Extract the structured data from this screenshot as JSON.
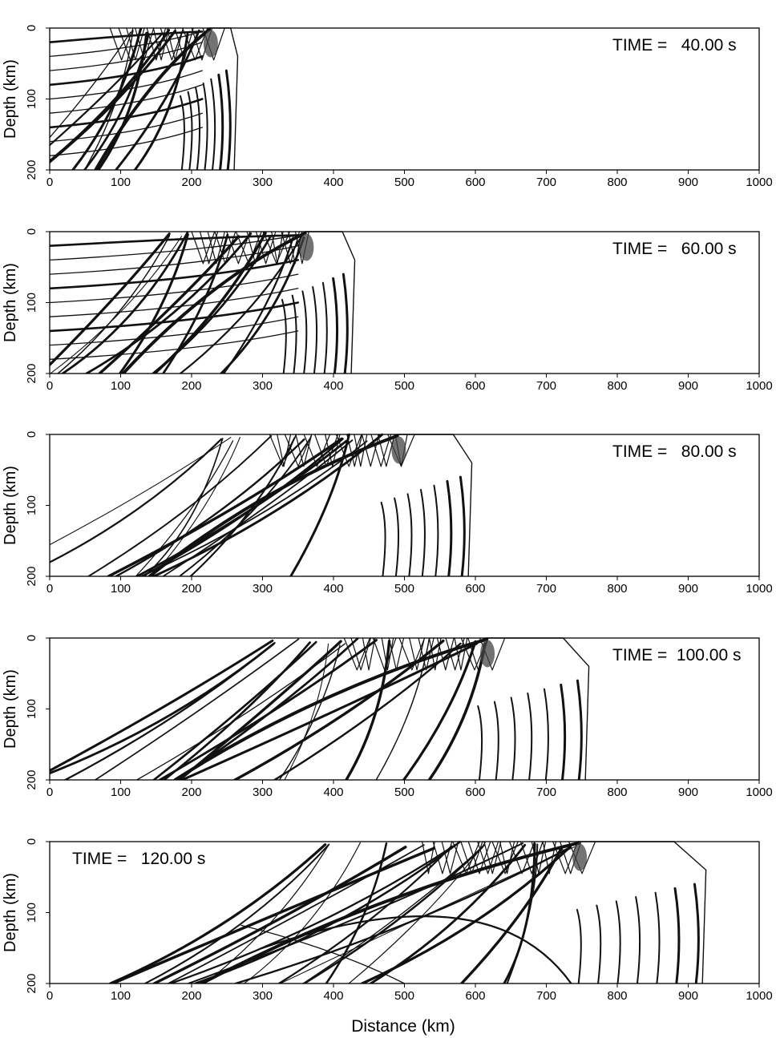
{
  "figure": {
    "xlabel": "Distance (km)",
    "ylabel": "Depth (km)"
  },
  "chart_data": [
    {
      "type": "wavefield-snapshot",
      "time_label": "TIME =   40.00 s",
      "time_s": 40.0,
      "label_pos": "top-right",
      "xlabel": "",
      "ylabel": "Depth (km)",
      "xlim": [
        0,
        1000
      ],
      "ylim": [
        200,
        0
      ],
      "xticks": [
        "0",
        "100",
        "200",
        "300",
        "400",
        "500",
        "600",
        "700",
        "800",
        "900",
        "1000"
      ],
      "yticks": [
        "0",
        "100",
        "200"
      ],
      "source_x_km": 225,
      "front_x_km": 265
    },
    {
      "type": "wavefield-snapshot",
      "time_label": "TIME =   60.00 s",
      "time_s": 60.0,
      "label_pos": "top-right",
      "xlabel": "",
      "ylabel": "Depth (km)",
      "xlim": [
        0,
        1000
      ],
      "ylim": [
        200,
        0
      ],
      "xticks": [
        "0",
        "100",
        "200",
        "300",
        "400",
        "500",
        "600",
        "700",
        "800",
        "900",
        "1000"
      ],
      "yticks": [
        "0",
        "100",
        "200"
      ],
      "source_x_km": 360,
      "front_x_km": 430
    },
    {
      "type": "wavefield-snapshot",
      "time_label": "TIME =   80.00 s",
      "time_s": 80.0,
      "label_pos": "top-right",
      "xlabel": "",
      "ylabel": "Depth (km)",
      "xlim": [
        0,
        1000
      ],
      "ylim": [
        200,
        0
      ],
      "xticks": [
        "0",
        "100",
        "200",
        "300",
        "400",
        "500",
        "600",
        "700",
        "800",
        "900",
        "1000"
      ],
      "yticks": [
        "0",
        "100",
        "200"
      ],
      "source_x_km": 490,
      "front_x_km": 595
    },
    {
      "type": "wavefield-snapshot",
      "time_label": "TIME =  100.00 s",
      "time_s": 100.0,
      "label_pos": "top-right",
      "xlabel": "",
      "ylabel": "Depth (km)",
      "xlim": [
        0,
        1000
      ],
      "ylim": [
        200,
        0
      ],
      "xticks": [
        "0",
        "100",
        "200",
        "300",
        "400",
        "500",
        "600",
        "700",
        "800",
        "900",
        "1000"
      ],
      "yticks": [
        "0",
        "100",
        "200"
      ],
      "source_x_km": 615,
      "front_x_km": 760
    },
    {
      "type": "wavefield-snapshot",
      "time_label": "TIME =   120.00 s",
      "time_s": 120.0,
      "label_pos": "top-left",
      "xlabel": "Distance (km)",
      "ylabel": "Depth (km)",
      "xlim": [
        0,
        1000
      ],
      "ylim": [
        200,
        0
      ],
      "xticks": [
        "0",
        "100",
        "200",
        "300",
        "400",
        "500",
        "600",
        "700",
        "800",
        "900",
        "1000"
      ],
      "yticks": [
        "0",
        "100",
        "200"
      ],
      "source_x_km": 745,
      "front_x_km": 925
    }
  ]
}
